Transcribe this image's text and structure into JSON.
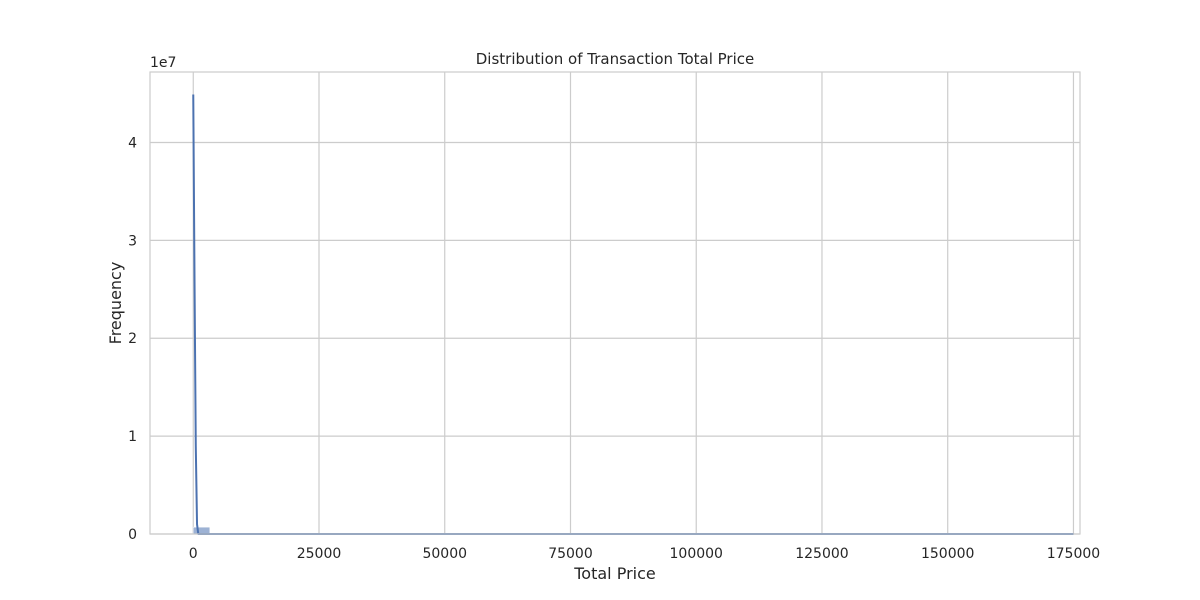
{
  "chart_data": {
    "type": "bar",
    "title": "Distribution of Transaction Total Price",
    "xlabel": "Total Price",
    "ylabel": "Frequency",
    "y_offset_label": "1e7",
    "xlim": [
      -8600,
      176300
    ],
    "ylim": [
      0,
      4.72
    ],
    "y_unit_multiplier": 10000000,
    "x_ticks": [
      0,
      25000,
      50000,
      75000,
      100000,
      125000,
      150000,
      175000
    ],
    "x_tick_labels": [
      "0",
      "25000",
      "50000",
      "75000",
      "100000",
      "125000",
      "150000",
      "175000"
    ],
    "y_ticks": [
      0,
      1,
      2,
      3,
      4
    ],
    "y_tick_labels": [
      "0",
      "1",
      "2",
      "3",
      "4"
    ],
    "grid": true,
    "bins": [
      {
        "x0": 0,
        "x1": 3300,
        "value": 0.07
      }
    ],
    "density_line": {
      "x": [
        0,
        250,
        500,
        750,
        1000,
        175000
      ],
      "y": [
        4.49,
        2.6,
        0.9,
        0.1,
        0,
        0
      ]
    },
    "colors": {
      "bar": "#4c72b0",
      "line": "#4c72b0",
      "grid": "#cccccc",
      "spine": "#cccccc"
    }
  }
}
